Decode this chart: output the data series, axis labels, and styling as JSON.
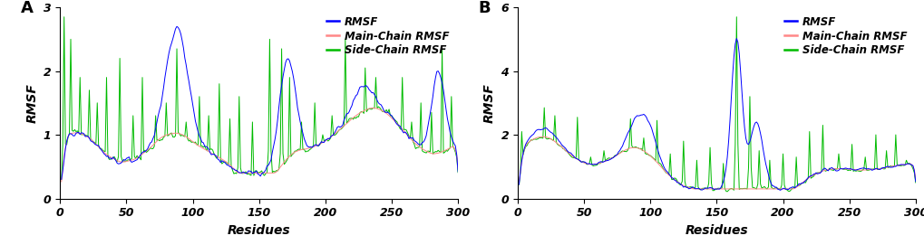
{
  "panel_A": {
    "label": "A",
    "ylim": [
      0,
      3
    ],
    "yticks": [
      0,
      1,
      2,
      3
    ],
    "xlim": [
      0,
      300
    ],
    "xticks": [
      0,
      50,
      100,
      150,
      200,
      250,
      300
    ],
    "xlabel": "Residues",
    "ylabel": "RMSF"
  },
  "panel_B": {
    "label": "B",
    "ylim": [
      0,
      6
    ],
    "yticks": [
      0,
      2,
      4,
      6
    ],
    "xlim": [
      0,
      300
    ],
    "xticks": [
      0,
      50,
      100,
      150,
      200,
      250,
      300
    ],
    "xlabel": "Residues",
    "ylabel": "RMSF"
  },
  "legend_entries": [
    "RMSF",
    "Main-Chain RMSF",
    "Side-Chain RMSF"
  ],
  "colors": {
    "rmsf": "#0000FF",
    "main_chain": "#FF8888",
    "side_chain": "#00BB00"
  },
  "line_width": 0.7,
  "background_color": "#ffffff",
  "font_style": "italic",
  "font_weight": "bold",
  "label_fontsize": 10,
  "tick_fontsize": 9,
  "legend_fontsize": 8.5
}
